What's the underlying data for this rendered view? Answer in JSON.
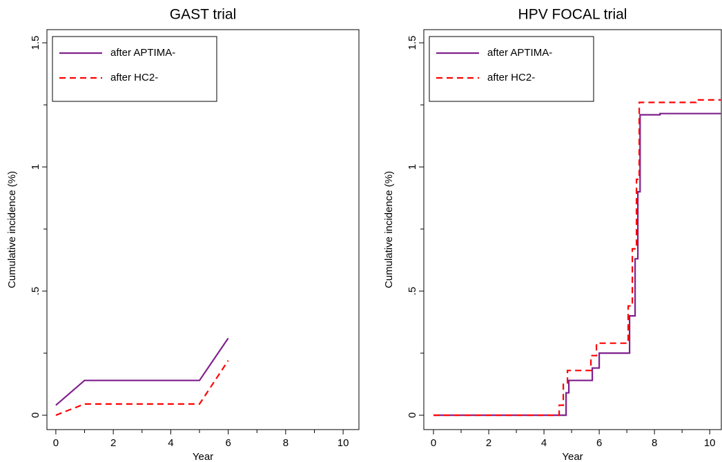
{
  "chart_data": [
    {
      "type": "line",
      "title": "GAST trial",
      "xlabel": "Year",
      "ylabel": "Cumulative incidence (%)",
      "xlim": [
        -0.31,
        10.55
      ],
      "xticks": [
        0,
        2,
        4,
        6,
        8,
        10
      ],
      "xminorticks": [
        1,
        3,
        5,
        7,
        9
      ],
      "ylim": [
        -0.058,
        1.553
      ],
      "yticks": [
        0,
        {
          "value": 0.5,
          "label": ".5"
        },
        1,
        1.5
      ],
      "yminorticks": [
        0.25,
        0.75,
        1.25
      ],
      "legend": "top-left",
      "series": [
        {
          "name": "after APTIMA-",
          "color": "#7f1f8c",
          "dash": "solid",
          "x": [
            0,
            1,
            5,
            6
          ],
          "values": [
            0.04,
            0.14,
            0.14,
            0.31
          ]
        },
        {
          "name": "after HC2-",
          "color": "#ff0000",
          "dash": "dashed",
          "x": [
            0,
            1,
            5,
            6
          ],
          "values": [
            0,
            0.045,
            0.045,
            0.22
          ]
        }
      ]
    },
    {
      "type": "line",
      "title": "HPV FOCAL trial",
      "xlabel": "Year",
      "ylabel": "Cumulative incidence (%)",
      "xlim": [
        -0.35,
        10.42
      ],
      "xticks": [
        0,
        2,
        4,
        6,
        8,
        10
      ],
      "xminorticks": [
        1,
        3,
        5,
        7,
        9
      ],
      "ylim": [
        -0.058,
        1.553
      ],
      "yticks": [
        0,
        {
          "value": 0.5,
          "label": ".5"
        },
        1,
        1.5
      ],
      "yminorticks": [
        0.25,
        0.75,
        1.25
      ],
      "legend": "top-left",
      "series": [
        {
          "name": "after APTIMA-",
          "color": "#7f1f8c",
          "dash": "solid",
          "x": [
            0,
            4.8,
            4.8,
            4.9,
            4.9,
            5.75,
            5.75,
            6.0,
            6.0,
            7.1,
            7.1,
            7.3,
            7.3,
            7.4,
            7.4,
            7.48,
            7.48,
            8.2,
            8.2,
            10.4
          ],
          "values": [
            0,
            0,
            0.09,
            0.09,
            0.14,
            0.14,
            0.19,
            0.19,
            0.25,
            0.25,
            0.4,
            0.4,
            0.63,
            0.63,
            0.9,
            0.9,
            1.21,
            1.21,
            1.215,
            1.215
          ]
        },
        {
          "name": "after HC2-",
          "color": "#ff0000",
          "dash": "dashed",
          "x": [
            0,
            4.55,
            4.55,
            4.7,
            4.7,
            4.85,
            4.85,
            5.7,
            5.7,
            5.9,
            5.9,
            7.05,
            7.05,
            7.2,
            7.2,
            7.35,
            7.35,
            7.45,
            7.45,
            9.5,
            9.5,
            10.4
          ],
          "values": [
            0,
            0,
            0.04,
            0.04,
            0.13,
            0.13,
            0.18,
            0.18,
            0.24,
            0.24,
            0.29,
            0.29,
            0.44,
            0.44,
            0.67,
            0.67,
            0.95,
            0.95,
            1.26,
            1.26,
            1.27,
            1.27
          ]
        }
      ]
    }
  ]
}
